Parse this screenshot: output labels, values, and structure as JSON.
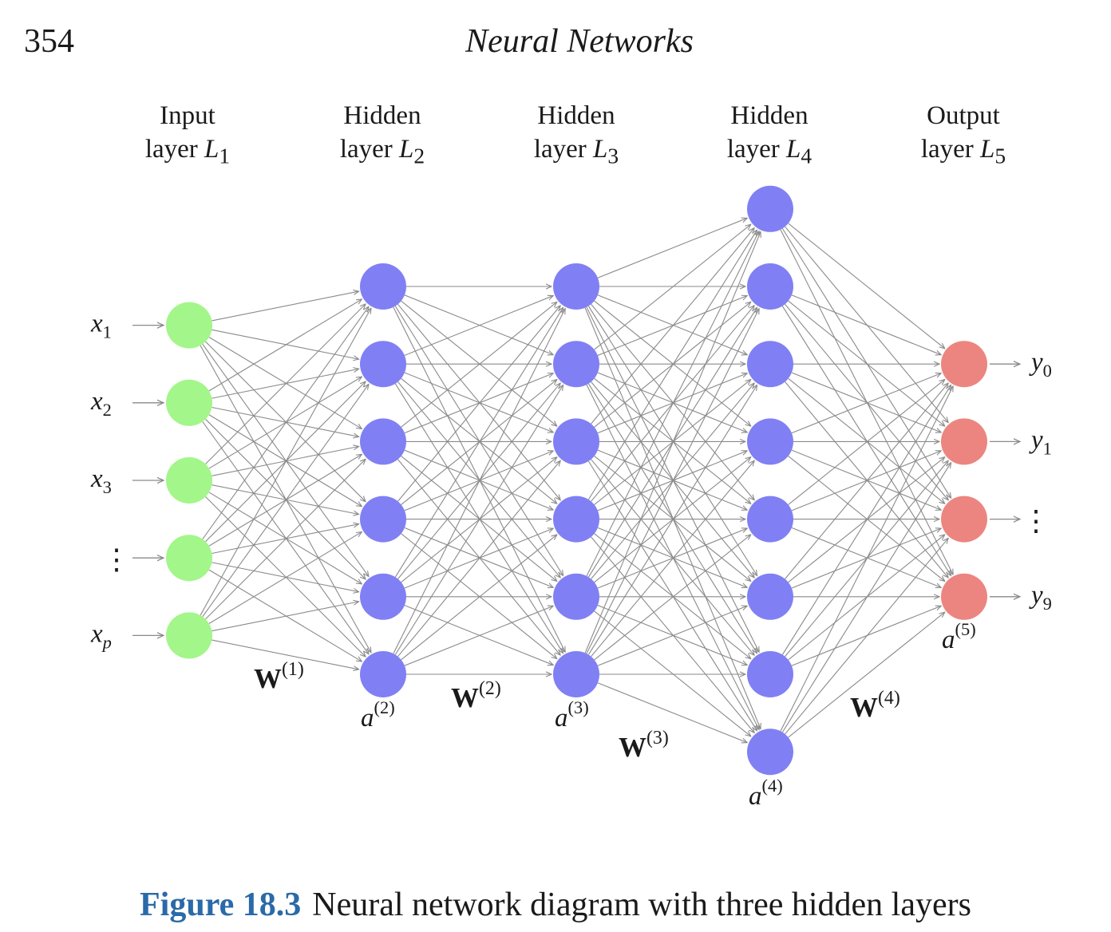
{
  "header": {
    "page_number": "354",
    "running_title": "Neural Networks"
  },
  "diagram": {
    "layers": [
      {
        "title_line1": "Input",
        "title_line2": "layer ",
        "title_var": "L",
        "title_sub": "1",
        "nodes": 5,
        "color": "#a3f68a"
      },
      {
        "title_line1": "Hidden",
        "title_line2": "layer ",
        "title_var": "L",
        "title_sub": "2",
        "nodes": 6,
        "color": "#8080f4"
      },
      {
        "title_line1": "Hidden",
        "title_line2": "layer ",
        "title_var": "L",
        "title_sub": "3",
        "nodes": 6,
        "color": "#8080f4"
      },
      {
        "title_line1": "Hidden",
        "title_line2": "layer ",
        "title_var": "L",
        "title_sub": "4",
        "nodes": 8,
        "color": "#8080f4"
      },
      {
        "title_line1": "Output",
        "title_line2": "layer ",
        "title_var": "L",
        "title_sub": "5",
        "nodes": 4,
        "color": "#ec8580"
      }
    ],
    "inputs": [
      {
        "base": "x",
        "sub": "1"
      },
      {
        "base": "x",
        "sub": "2"
      },
      {
        "base": "x",
        "sub": "3"
      },
      {
        "base": "⋮",
        "sub": ""
      },
      {
        "base": "x",
        "sub": "p"
      }
    ],
    "outputs": [
      {
        "base": "y",
        "sub": "0"
      },
      {
        "base": "y",
        "sub": "1"
      },
      {
        "base": "⋮",
        "sub": ""
      },
      {
        "base": "y",
        "sub": "9"
      }
    ],
    "weights": [
      {
        "base": "W",
        "sup": "(1)"
      },
      {
        "base": "W",
        "sup": "(2)"
      },
      {
        "base": "W",
        "sup": "(3)"
      },
      {
        "base": "W",
        "sup": "(4)"
      }
    ],
    "activations": [
      {
        "base": "a",
        "sup": "(2)"
      },
      {
        "base": "a",
        "sup": "(3)"
      },
      {
        "base": "a",
        "sup": "(4)"
      },
      {
        "base": "a",
        "sup": "(5)"
      }
    ],
    "colors": {
      "edge": "#8a8a8a",
      "input": "#a3f68a",
      "hidden": "#8080f4",
      "output": "#ec8580"
    }
  },
  "caption": {
    "label": "Figure 18.3",
    "text": "Neural network diagram with three hidden layers"
  }
}
